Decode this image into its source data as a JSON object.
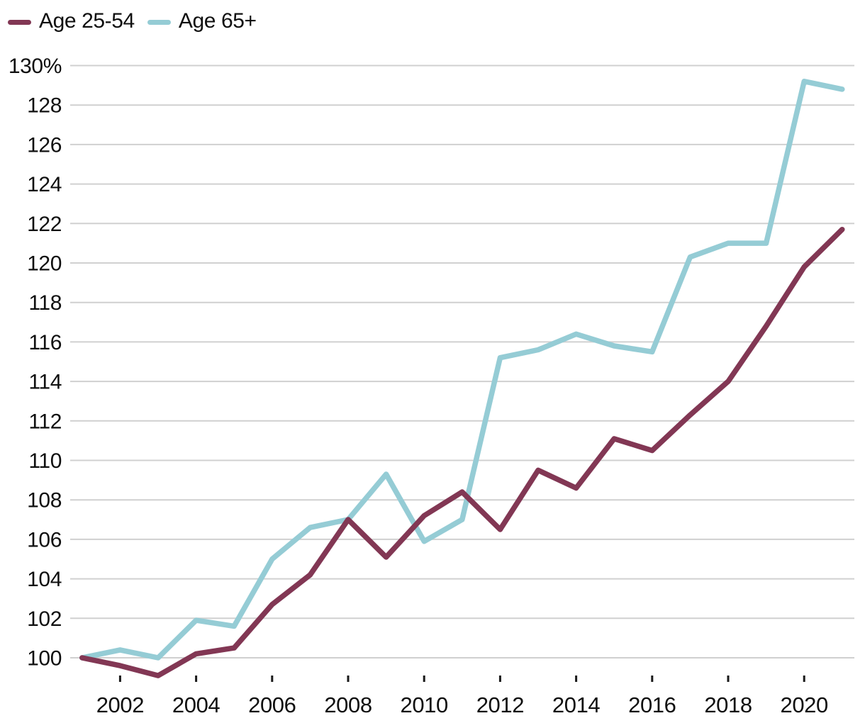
{
  "chart_data": {
    "type": "line",
    "title": "",
    "x": [
      2001,
      2002,
      2003,
      2004,
      2005,
      2006,
      2007,
      2008,
      2009,
      2010,
      2011,
      2012,
      2013,
      2014,
      2015,
      2016,
      2017,
      2018,
      2019,
      2020,
      2021
    ],
    "series": [
      {
        "name": "Age 25-54",
        "color": "#823754",
        "values": [
          100.0,
          99.6,
          99.1,
          100.2,
          100.5,
          102.7,
          104.2,
          107.0,
          105.1,
          107.2,
          108.4,
          106.5,
          109.5,
          108.6,
          111.1,
          110.5,
          112.3,
          114.0,
          116.8,
          119.8,
          121.7
        ]
      },
      {
        "name": "Age 65+",
        "color": "#95ccd5",
        "values": [
          100.0,
          100.4,
          100.0,
          101.9,
          101.6,
          105.0,
          106.6,
          107.0,
          109.3,
          105.9,
          107.0,
          115.2,
          115.6,
          116.4,
          115.8,
          115.5,
          120.3,
          121.0,
          121.0,
          129.2,
          128.8
        ]
      }
    ],
    "y_axis": {
      "ticks": [
        100,
        102,
        104,
        106,
        108,
        110,
        112,
        114,
        116,
        118,
        120,
        122,
        124,
        126,
        128,
        130
      ],
      "top_label": "130%"
    },
    "x_axis": {
      "ticks": [
        2002,
        2004,
        2006,
        2008,
        2010,
        2012,
        2014,
        2016,
        2018,
        2020
      ]
    },
    "ylim": [
      99.0,
      130
    ],
    "xlabel": "",
    "ylabel": "",
    "grid": "horizontal",
    "legend_position": "top-left"
  },
  "colors": {
    "background": "#ffffff",
    "grid": "#d0d0d0",
    "axis_text": "#0f0f0f",
    "tick_mark": "#1a1a1a"
  }
}
